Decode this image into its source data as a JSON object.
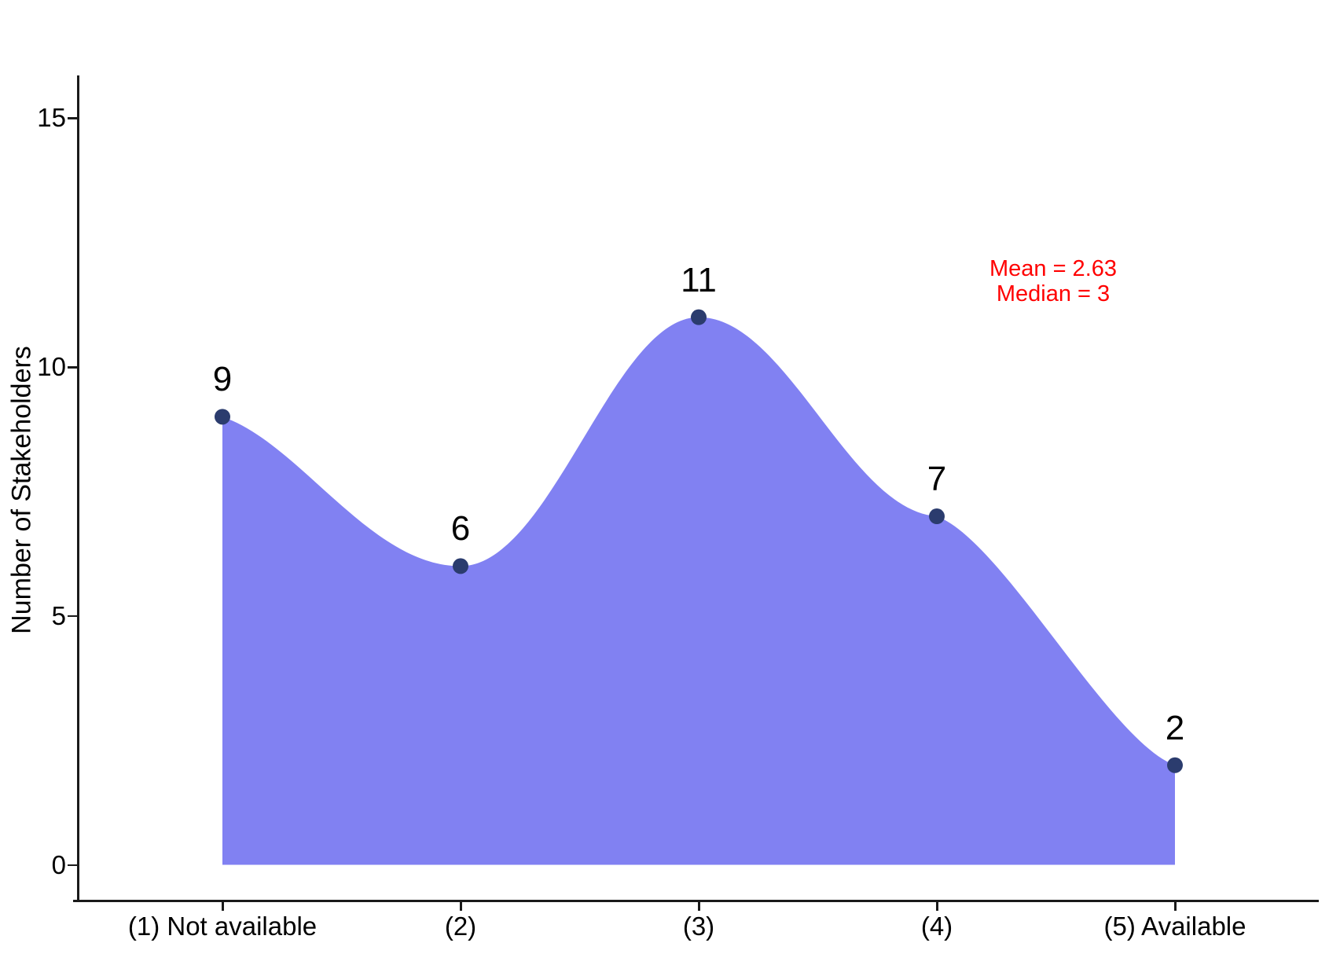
{
  "chart_data": {
    "type": "area",
    "title": "",
    "xlabel": "",
    "ylabel": "Number of Stakeholders",
    "categories": [
      "(1) Not available",
      "(2)",
      "(3)",
      "(4)",
      "(5) Available"
    ],
    "x": [
      1,
      2,
      3,
      4,
      5
    ],
    "values": [
      9,
      6,
      11,
      7,
      2
    ],
    "point_labels": [
      "9",
      "6",
      "11",
      "7",
      "2"
    ],
    "yticks": [
      0,
      5,
      10,
      15
    ],
    "ylim": [
      0,
      16.5
    ],
    "grid": false,
    "legend": false,
    "annotation": {
      "lines": [
        "Mean = 2.63",
        "Median = 3"
      ],
      "color": "#FF0000"
    },
    "colors": {
      "area_fill": "#8181F2",
      "point": "#2B3C6E",
      "axis": "#1A1A1A",
      "text": "#000000"
    }
  }
}
